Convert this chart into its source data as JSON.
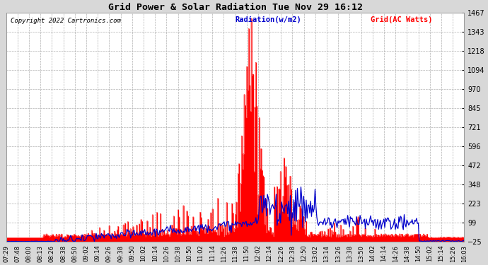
{
  "title": "Grid Power & Solar Radiation Tue Nov 29 16:12",
  "copyright": "Copyright 2022 Cartronics.com",
  "legend_radiation": "Radiation(w/m2)",
  "legend_grid": "Grid(AC Watts)",
  "bg_color": "#d8d8d8",
  "plot_bg_color": "#ffffff",
  "grid_color": "#b0b0b0",
  "radiation_color": "#ff0000",
  "grid_line_color": "#0000cc",
  "yticks": [
    1467.3,
    1342.9,
    1218.5,
    1094.1,
    969.7,
    845.3,
    720.9,
    596.5,
    472.1,
    347.7,
    223.3,
    99.0,
    -25.4
  ],
  "ylim": [
    -25.4,
    1467.3
  ],
  "n_points": 520,
  "xtick_labels": [
    "07:29",
    "07:48",
    "08:00",
    "08:13",
    "08:26",
    "08:38",
    "08:50",
    "09:02",
    "09:14",
    "09:26",
    "09:38",
    "09:50",
    "10:02",
    "10:14",
    "10:26",
    "10:38",
    "10:50",
    "11:02",
    "11:14",
    "11:26",
    "11:38",
    "11:50",
    "12:02",
    "12:14",
    "12:26",
    "12:38",
    "12:50",
    "13:02",
    "13:14",
    "13:26",
    "13:38",
    "13:50",
    "14:02",
    "14:14",
    "14:26",
    "14:38",
    "14:50",
    "15:02",
    "15:14",
    "15:26",
    "16:03"
  ]
}
